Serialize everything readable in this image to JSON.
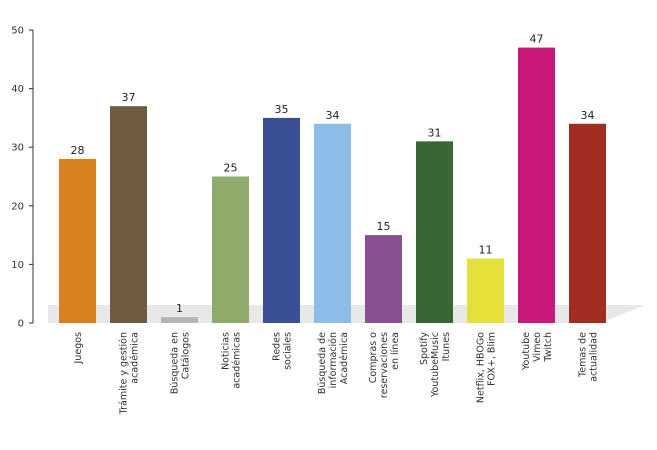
{
  "chart_data": {
    "type": "bar",
    "categories": [
      [
        "Juegos"
      ],
      [
        "Trámite y gestión",
        "académica"
      ],
      [
        "Búsqueda en",
        "Catálogos"
      ],
      [
        "Noticias",
        "académicas"
      ],
      [
        "Redes",
        "sociales"
      ],
      [
        "Búsqueda de",
        "información",
        "Académica"
      ],
      [
        "Compras o",
        "reservaciones",
        "en línea"
      ],
      [
        "Spotify",
        "YoutubeMusic",
        "Itunes"
      ],
      [
        "Netflix, HBOGo",
        "FOX+, Blim"
      ],
      [
        "Youtube",
        "Vimeo",
        "Twitch"
      ],
      [
        "Temas de",
        "actualidad"
      ]
    ],
    "values": [
      28,
      37,
      1,
      25,
      35,
      34,
      15,
      31,
      11,
      47,
      34
    ],
    "colors": [
      "#d9811f",
      "#6f5b40",
      "#b5b5b5",
      "#8fab6c",
      "#3b4f97",
      "#8cbde8",
      "#8a4e93",
      "#386635",
      "#e5e03a",
      "#c8197a",
      "#a22e21"
    ],
    "yticks": [
      0,
      10,
      20,
      30,
      40,
      50
    ],
    "ylim": [
      0,
      50
    ],
    "grid": false,
    "legend": "none",
    "title": "",
    "xlabel": "",
    "ylabel": ""
  }
}
